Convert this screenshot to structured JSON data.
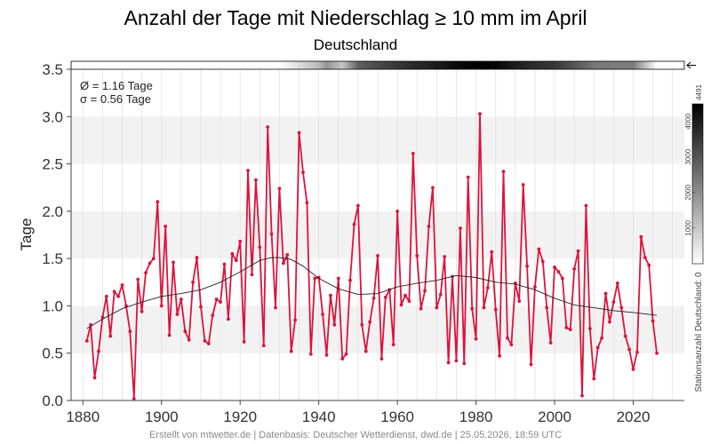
{
  "chart_data": {
    "type": "line",
    "title": "Anzahl der Tage mit Niederschlag ≥ 10 mm im April",
    "subtitle": "Deutschland",
    "ylabel": "Tage",
    "xlabel": "",
    "xlim": [
      1877,
      2033
    ],
    "ylim": [
      0,
      3.5
    ],
    "x_ticks": [
      "1880",
      "1900",
      "1920",
      "1940",
      "1960",
      "1980",
      "2000",
      "2020"
    ],
    "y_ticks": [
      "0.0",
      "0.5",
      "1.0",
      "1.5",
      "2.0",
      "2.5",
      "3.0",
      "3.5"
    ],
    "grid": true,
    "stats": [
      "Ø = 1.16 Tage",
      "σ = 0.56 Tage"
    ],
    "series": [
      {
        "color": "#dc143c",
        "x": [
          1881,
          1882,
          1883,
          1884,
          1885,
          1886,
          1887,
          1888,
          1889,
          1890,
          1891,
          1892,
          1893,
          1894,
          1895,
          1896,
          1897,
          1898,
          1899,
          1900,
          1901,
          1902,
          1903,
          1904,
          1905,
          1906,
          1907,
          1908,
          1909,
          1910,
          1911,
          1912,
          1913,
          1914,
          1915,
          1916,
          1917,
          1918,
          1919,
          1920,
          1921,
          1922,
          1923,
          1924,
          1925,
          1926,
          1927,
          1928,
          1929,
          1930,
          1931,
          1932,
          1933,
          1934,
          1935,
          1936,
          1937,
          1938,
          1939,
          1940,
          1941,
          1942,
          1943,
          1944,
          1945,
          1946,
          1947,
          1948,
          1949,
          1950,
          1951,
          1952,
          1953,
          1954,
          1955,
          1956,
          1957,
          1958,
          1959,
          1960,
          1961,
          1962,
          1963,
          1964,
          1965,
          1966,
          1967,
          1968,
          1969,
          1970,
          1971,
          1972,
          1973,
          1974,
          1975,
          1976,
          1977,
          1978,
          1979,
          1980,
          1981,
          1982,
          1983,
          1984,
          1985,
          1986,
          1987,
          1988,
          1989,
          1990,
          1991,
          1992,
          1993,
          1994,
          1995,
          1996,
          1997,
          1998,
          1999,
          2000,
          2001,
          2002,
          2003,
          2004,
          2005,
          2006,
          2007,
          2008,
          2009,
          2010,
          2011,
          2012,
          2013,
          2014,
          2015,
          2016,
          2017,
          2018,
          2019,
          2020,
          2021,
          2022,
          2023,
          2024,
          2025,
          2026
        ],
        "values": [
          0.63,
          0.8,
          0.24,
          0.52,
          0.88,
          1.1,
          0.68,
          1.15,
          1.1,
          1.22,
          1.0,
          0.73,
          0.02,
          1.28,
          0.94,
          1.35,
          1.45,
          1.5,
          2.1,
          1.0,
          1.84,
          0.69,
          1.46,
          0.91,
          1.07,
          0.73,
          0.64,
          1.25,
          1.51,
          0.99,
          0.63,
          0.6,
          0.9,
          1.07,
          1.04,
          1.44,
          0.86,
          1.55,
          1.48,
          1.68,
          0.62,
          2.43,
          1.33,
          2.33,
          1.62,
          0.58,
          2.89,
          1.76,
          0.98,
          2.24,
          1.45,
          1.54,
          0.52,
          0.85,
          2.83,
          2.41,
          2.09,
          0.49,
          1.29,
          1.3,
          0.91,
          0.48,
          1.11,
          0.8,
          1.29,
          0.44,
          0.49,
          1.27,
          1.86,
          2.06,
          0.8,
          0.52,
          0.83,
          1.08,
          1.53,
          0.44,
          1.09,
          1.17,
          0.59,
          2.0,
          1.01,
          1.11,
          1.05,
          2.61,
          1.53,
          0.97,
          1.16,
          1.84,
          2.25,
          0.98,
          1.12,
          1.52,
          0.4,
          1.31,
          0.42,
          1.82,
          0.39,
          2.36,
          0.97,
          0.65,
          3.03,
          0.98,
          1.19,
          1.57,
          0.96,
          0.47,
          2.42,
          0.66,
          0.59,
          1.24,
          1.05,
          2.28,
          1.42,
          0.38,
          1.2,
          1.6,
          1.47,
          0.98,
          0.61,
          1.41,
          1.36,
          1.29,
          0.77,
          0.75,
          1.39,
          1.58,
          0.05,
          2.06,
          0.76,
          0.23,
          0.56,
          0.66,
          1.13,
          0.83,
          1.04,
          1.24,
          0.98,
          0.68,
          0.54,
          0.33,
          0.51,
          1.73,
          1.51,
          1.43,
          0.84,
          0.5
        ]
      },
      {
        "color": "#222222",
        "x": [
          1881,
          1885,
          1890,
          1895,
          1900,
          1905,
          1910,
          1915,
          1920,
          1925,
          1928,
          1930,
          1933,
          1936,
          1940,
          1945,
          1950,
          1955,
          1960,
          1965,
          1970,
          1975,
          1980,
          1985,
          1990,
          1995,
          2000,
          2005,
          2010,
          2015,
          2020,
          2026
        ],
        "values": [
          0.76,
          0.86,
          0.97,
          1.04,
          1.1,
          1.13,
          1.17,
          1.25,
          1.36,
          1.48,
          1.51,
          1.51,
          1.49,
          1.42,
          1.29,
          1.18,
          1.12,
          1.13,
          1.2,
          1.24,
          1.27,
          1.32,
          1.3,
          1.25,
          1.23,
          1.17,
          1.08,
          1.01,
          0.98,
          0.95,
          0.93,
          0.9
        ]
      }
    ],
    "station_bar": {
      "title": "Stationsanzahl Deutschland: 0",
      "max_label": "4491",
      "ticks": [
        "1000",
        "2000",
        "3000",
        "4000"
      ],
      "max_value": 4491,
      "years": [
        1881,
        1890,
        1900,
        1910,
        1920,
        1930,
        1940,
        1942,
        1946,
        1950,
        1955,
        1960,
        1965,
        1970,
        1975,
        1980,
        1985,
        1990,
        1995,
        2000,
        2005,
        2010,
        2015,
        2020,
        2026
      ],
      "counts": [
        0,
        0,
        0,
        0,
        0,
        0,
        1200,
        1900,
        1000,
        2800,
        3200,
        3500,
        3800,
        4000,
        4300,
        4491,
        4400,
        4000,
        3700,
        3500,
        3000,
        2400,
        2300,
        2300,
        0
      ]
    },
    "footer": "Erstellt von mtwetter.de | Datenbasis: Deutscher Wetterdienst, dwd.de | 25.05.2026, 18:59 UTC"
  }
}
